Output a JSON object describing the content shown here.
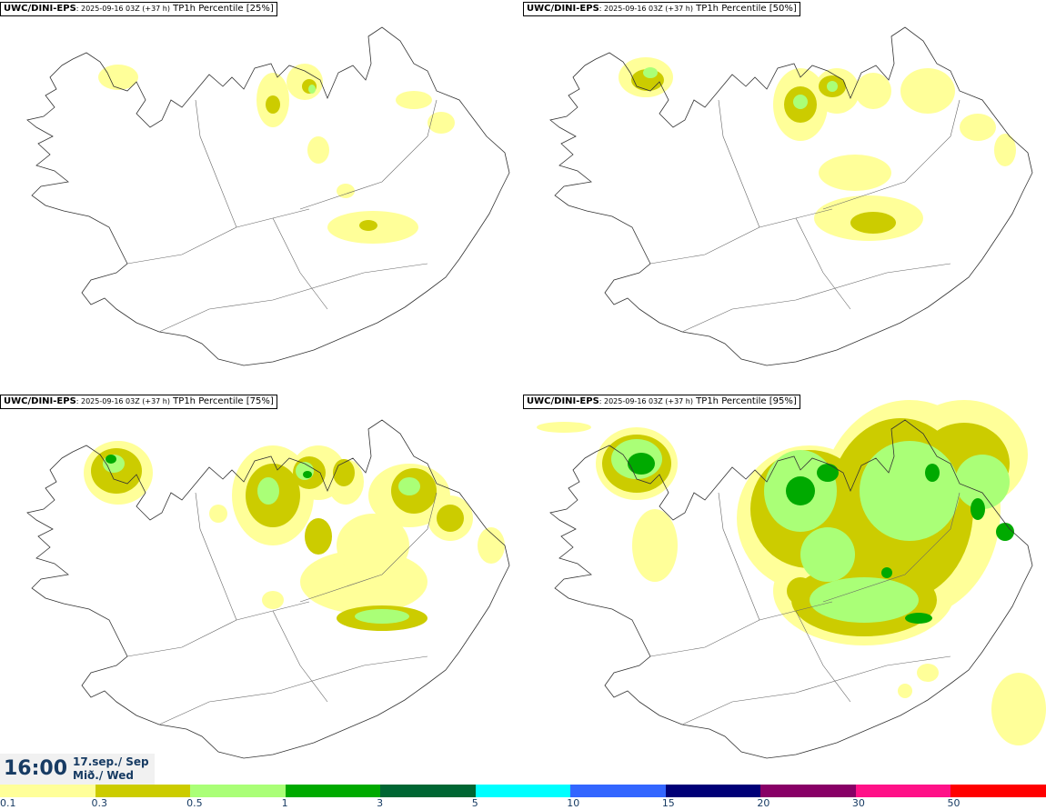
{
  "panels": [
    {
      "model": "UWC/DINI-EPS",
      "run": ": 2025-09-16 03Z ",
      "lead": "(+37 h)",
      "field": " TP1h Percentile [25%]",
      "level": 1
    },
    {
      "model": "UWC/DINI-EPS",
      "run": ": 2025-09-16 03Z ",
      "lead": "(+37 h)",
      "field": " TP1h Percentile [50%]",
      "level": 2
    },
    {
      "model": "UWC/DINI-EPS",
      "run": ": 2025-09-16 03Z ",
      "lead": "(+37 h)",
      "field": " TP1h Percentile [75%]",
      "level": 3
    },
    {
      "model": "UWC/DINI-EPS",
      "run": ": 2025-09-16 03Z ",
      "lead": "(+37 h)",
      "field": " TP1h Percentile [95%]",
      "level": 4
    }
  ],
  "valid_time": {
    "time": "16:00",
    "date_line1": "17.sep./ Sep",
    "date_line2": "Mið./ Wed"
  },
  "legend": {
    "colors": [
      "#ffff99",
      "#cccc00",
      "#aaff77",
      "#00aa00",
      "#006633",
      "#00ffff",
      "#3366ff",
      "#000077",
      "#880066",
      "#ff1188",
      "#ff0000"
    ],
    "labels": [
      "0.1",
      "0.3",
      "0.5",
      "1",
      "3",
      "5",
      "10",
      "15",
      "20",
      "30",
      "50"
    ]
  }
}
